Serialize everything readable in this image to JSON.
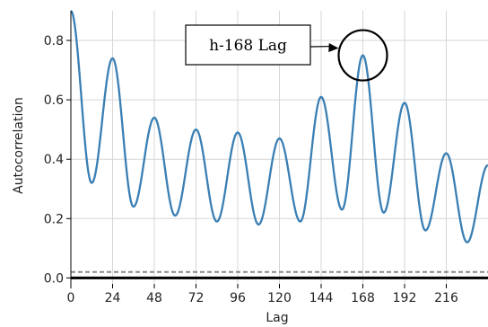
{
  "chart_data": {
    "type": "line",
    "xlabel": "Lag",
    "ylabel": "Autocorrelation",
    "xlim": [
      0,
      240
    ],
    "ylim": [
      -0.02,
      0.9
    ],
    "x_ticks": [
      0,
      24,
      48,
      72,
      96,
      120,
      144,
      168,
      192,
      216
    ],
    "x_tick_labels": [
      "0",
      "24",
      "48",
      "72",
      "96",
      "120",
      "144",
      "168",
      "192",
      "216"
    ],
    "y_ticks": [
      0.0,
      0.2,
      0.4,
      0.6,
      0.8
    ],
    "y_tick_labels": [
      "0.0",
      "0.2",
      "0.4",
      "0.6",
      "0.8"
    ],
    "grid": true,
    "line_color": "#3a7fb4",
    "confidence_line_color": "#888888",
    "zero_line_color": "#000000",
    "confidence_band": 0.02,
    "series": [
      {
        "x": [
          0,
          12,
          24,
          36,
          48,
          60,
          72,
          84,
          96,
          108,
          120,
          132,
          144,
          156,
          168,
          180,
          192,
          204,
          216,
          228,
          240
        ],
        "values": [
          0.9,
          0.32,
          0.74,
          0.24,
          0.54,
          0.21,
          0.5,
          0.19,
          0.49,
          0.18,
          0.47,
          0.19,
          0.61,
          0.23,
          0.75,
          0.22,
          0.59,
          0.16,
          0.42,
          0.12,
          0.38
        ]
      }
    ],
    "annotation": {
      "text": "h-168 Lag",
      "x": 168,
      "y": 0.75
    }
  }
}
